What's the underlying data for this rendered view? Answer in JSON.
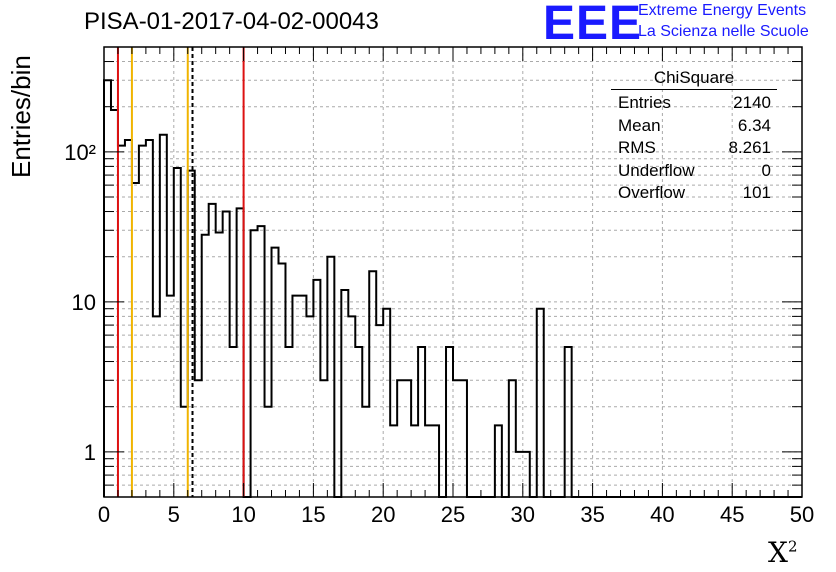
{
  "title": "PISA-01-2017-04-02-00043",
  "logo": {
    "mark": "EEE",
    "line1": "Extreme Energy Events",
    "line2": "La Scienza nelle Scuole"
  },
  "stats": {
    "title": "ChiSquare",
    "rows": [
      {
        "label": "Entries",
        "value": "2140"
      },
      {
        "label": "Mean",
        "value": "6.34"
      },
      {
        "label": "RMS",
        "value": "8.261"
      },
      {
        "label": "Underflow",
        "value": "0"
      },
      {
        "label": "Overflow",
        "value": "101"
      }
    ]
  },
  "colors": {
    "red_line": "#dd1111",
    "yellow_line": "#f0b400",
    "hist": "#000000"
  },
  "chart_data": {
    "type": "histogram",
    "xlabel": "X",
    "xlabel_superscript": "2",
    "ylabel": "Entries/bin",
    "xlim": [
      0,
      50
    ],
    "ylim": [
      0.5,
      500
    ],
    "yscale": "log",
    "grid": true,
    "x_ticks": [
      0,
      5,
      10,
      15,
      20,
      25,
      30,
      35,
      40,
      45,
      50
    ],
    "x_tick_labels": [
      "0",
      "5",
      "10",
      "15",
      "20",
      "25",
      "30",
      "35",
      "40",
      "45",
      "50"
    ],
    "y_ticks": [
      1,
      10,
      100
    ],
    "y_tick_labels": [
      "1",
      "10",
      "10²"
    ],
    "bin_width": 0.5,
    "values": [
      300,
      190,
      110,
      120,
      62,
      110,
      120,
      8,
      130,
      11,
      78,
      2,
      75,
      3,
      28,
      45,
      29,
      40,
      5,
      42,
      0.5,
      30,
      32,
      2,
      23,
      18,
      5,
      11,
      11,
      8,
      14,
      3,
      20,
      0.5,
      12,
      8,
      5,
      2,
      16,
      7,
      9,
      1.5,
      3,
      3,
      1.5,
      5,
      1.5,
      1.5,
      0.5,
      5,
      3,
      3,
      0.5,
      0.5,
      0.5,
      0.5,
      1.5,
      0.5,
      3,
      1,
      1,
      0.5,
      9,
      0.5,
      0.5,
      0.5,
      5,
      0.5,
      0.5,
      0.5,
      0.5,
      0.5,
      0,
      0,
      0.5,
      0,
      0,
      0,
      0,
      0,
      0,
      0,
      0,
      0,
      0,
      0,
      0,
      0,
      0,
      0,
      0,
      0,
      0,
      0,
      0,
      0,
      0,
      0,
      0,
      0
    ],
    "vertical_lines": [
      {
        "x": 1,
        "color": "#dd1111",
        "style": "solid"
      },
      {
        "x": 2,
        "color": "#f0b400",
        "style": "solid"
      },
      {
        "x": 6,
        "color": "#f0b400",
        "style": "solid"
      },
      {
        "x": 6.34,
        "color": "#000000",
        "style": "dashed"
      },
      {
        "x": 10,
        "color": "#dd1111",
        "style": "solid"
      }
    ]
  }
}
